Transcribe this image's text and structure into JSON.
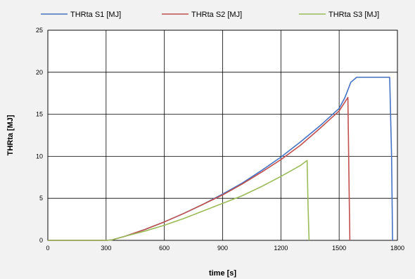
{
  "chart_data": {
    "type": "line",
    "xlabel": "time [s]",
    "ylabel": "THRta [MJ]",
    "xlim": [
      0,
      1800
    ],
    "ylim": [
      0,
      25
    ],
    "xticks": [
      0,
      300,
      600,
      900,
      1200,
      1500,
      1800
    ],
    "yticks": [
      0,
      5,
      10,
      15,
      20,
      25
    ],
    "grid": true,
    "legend_position": "top",
    "series": [
      {
        "name": "THRta S1 [MJ]",
        "color": "#4472c4",
        "x": [
          0,
          300,
          330,
          400,
          500,
          600,
          700,
          800,
          900,
          1000,
          1100,
          1200,
          1300,
          1400,
          1500,
          1530,
          1560,
          1590,
          1760,
          1770,
          1775
        ],
        "y": [
          0,
          0,
          0.05,
          0.5,
          1.3,
          2.2,
          3.2,
          4.3,
          5.5,
          6.8,
          8.3,
          9.9,
          11.7,
          13.6,
          15.7,
          17.0,
          18.8,
          19.4,
          19.4,
          10,
          0
        ]
      },
      {
        "name": "THRta S2 [MJ]",
        "color": "#c0504d",
        "x": [
          0,
          300,
          330,
          400,
          500,
          600,
          700,
          800,
          900,
          1000,
          1100,
          1200,
          1300,
          1400,
          1500,
          1545,
          1550,
          1555
        ],
        "y": [
          0,
          0,
          0.05,
          0.5,
          1.3,
          2.2,
          3.2,
          4.3,
          5.4,
          6.7,
          8.1,
          9.6,
          11.3,
          13.3,
          15.4,
          17.0,
          8,
          0
        ]
      },
      {
        "name": "THRta S3 [MJ]",
        "color": "#9bbb59",
        "x": [
          0,
          300,
          330,
          400,
          500,
          600,
          700,
          800,
          900,
          1000,
          1100,
          1200,
          1300,
          1335,
          1340,
          1345
        ],
        "y": [
          0,
          0,
          0.05,
          0.5,
          1.1,
          1.8,
          2.6,
          3.5,
          4.4,
          5.3,
          6.4,
          7.6,
          8.9,
          9.5,
          4,
          0
        ]
      }
    ]
  }
}
